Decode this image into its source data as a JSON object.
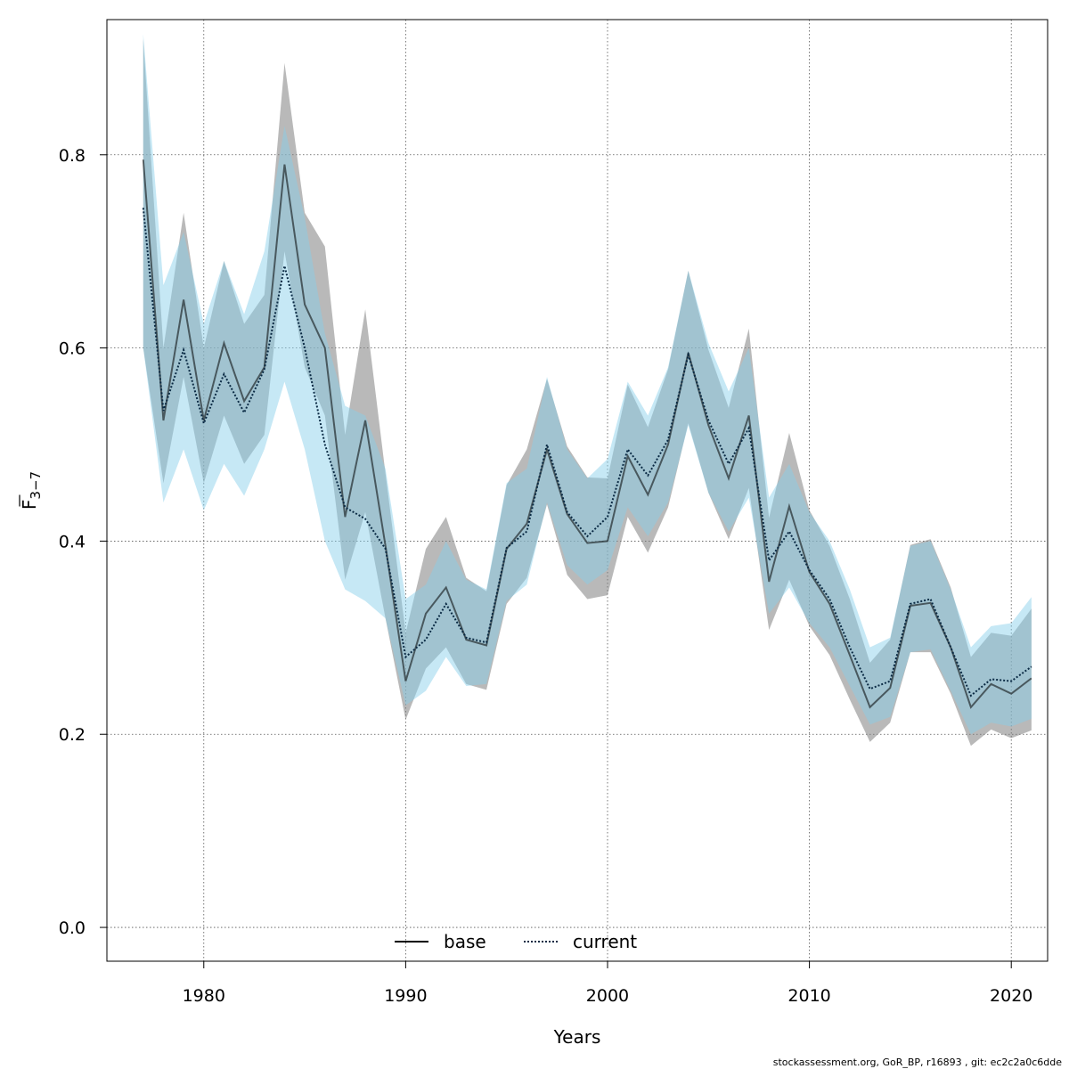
{
  "chart_data": {
    "type": "line",
    "xlabel": "Years",
    "ylabel": {
      "main": "F",
      "sub": "3−7"
    },
    "xlim": [
      1975.2,
      2021.8
    ],
    "ylim": [
      -0.035,
      0.94
    ],
    "x_ticks": [
      1980,
      1990,
      2000,
      2010,
      2020
    ],
    "x_tick_labels": [
      "1980",
      "1990",
      "2000",
      "2010",
      "2020"
    ],
    "y_ticks": [
      0.0,
      0.2,
      0.4,
      0.6,
      0.8
    ],
    "y_tick_labels": [
      "0.0",
      "0.2",
      "0.4",
      "0.6",
      "0.8"
    ],
    "grid": true,
    "legend_position": "bottom-center",
    "x": [
      1977,
      1978,
      1979,
      1980,
      1981,
      1982,
      1983,
      1984,
      1985,
      1986,
      1987,
      1988,
      1989,
      1990,
      1991,
      1992,
      1993,
      1994,
      1995,
      1996,
      1997,
      1998,
      1999,
      2000,
      2001,
      2002,
      2003,
      2004,
      2005,
      2006,
      2007,
      2008,
      2009,
      2010,
      2011,
      2012,
      2013,
      2014,
      2015,
      2016,
      2017,
      2018,
      2019,
      2020,
      2021
    ],
    "series": [
      {
        "name": "base",
        "line_style": "solid",
        "color": "#000000",
        "band_color": "#808080",
        "values": [
          0.795,
          0.525,
          0.65,
          0.525,
          0.605,
          0.545,
          0.58,
          0.79,
          0.645,
          0.6,
          0.425,
          0.525,
          0.395,
          0.255,
          0.325,
          0.352,
          0.298,
          0.292,
          0.392,
          0.418,
          0.495,
          0.428,
          0.398,
          0.4,
          0.488,
          0.448,
          0.5,
          0.595,
          0.52,
          0.465,
          0.53,
          0.358,
          0.436,
          0.368,
          0.335,
          0.282,
          0.228,
          0.248,
          0.333,
          0.336,
          0.29,
          0.228,
          0.252,
          0.242,
          0.258
        ],
        "lower": [
          0.6,
          0.46,
          0.57,
          0.46,
          0.53,
          0.48,
          0.51,
          0.7,
          0.58,
          0.53,
          0.36,
          0.43,
          0.32,
          0.215,
          0.268,
          0.29,
          0.252,
          0.246,
          0.335,
          0.362,
          0.438,
          0.365,
          0.34,
          0.344,
          0.425,
          0.388,
          0.435,
          0.522,
          0.45,
          0.402,
          0.455,
          0.308,
          0.36,
          0.312,
          0.282,
          0.236,
          0.192,
          0.212,
          0.285,
          0.285,
          0.242,
          0.188,
          0.205,
          0.196,
          0.204
        ],
        "upper": [
          0.92,
          0.6,
          0.74,
          0.6,
          0.69,
          0.625,
          0.655,
          0.895,
          0.74,
          0.705,
          0.51,
          0.64,
          0.47,
          0.305,
          0.392,
          0.425,
          0.362,
          0.348,
          0.458,
          0.495,
          0.568,
          0.498,
          0.466,
          0.465,
          0.562,
          0.518,
          0.578,
          0.68,
          0.598,
          0.538,
          0.62,
          0.424,
          0.512,
          0.432,
          0.395,
          0.34,
          0.274,
          0.298,
          0.396,
          0.402,
          0.352,
          0.28,
          0.305,
          0.302,
          0.33
        ]
      },
      {
        "name": "current",
        "line_style": "dotted",
        "color": "#0a2a44",
        "band_color": "#87ceeb",
        "values": [
          0.745,
          0.535,
          0.598,
          0.522,
          0.573,
          0.533,
          0.578,
          0.685,
          0.6,
          0.5,
          0.435,
          0.423,
          0.392,
          0.28,
          0.298,
          0.335,
          0.3,
          0.295,
          0.393,
          0.41,
          0.5,
          0.43,
          0.405,
          0.425,
          0.495,
          0.468,
          0.505,
          0.593,
          0.525,
          0.48,
          0.517,
          0.38,
          0.41,
          0.37,
          0.34,
          0.29,
          0.247,
          0.255,
          0.335,
          0.34,
          0.29,
          0.24,
          0.257,
          0.255,
          0.27
        ],
        "lower": [
          0.6,
          0.44,
          0.495,
          0.432,
          0.48,
          0.447,
          0.495,
          0.565,
          0.495,
          0.4,
          0.35,
          0.338,
          0.32,
          0.23,
          0.245,
          0.28,
          0.25,
          0.252,
          0.338,
          0.355,
          0.44,
          0.375,
          0.355,
          0.37,
          0.435,
          0.405,
          0.44,
          0.52,
          0.45,
          0.41,
          0.445,
          0.325,
          0.352,
          0.315,
          0.29,
          0.25,
          0.21,
          0.218,
          0.285,
          0.288,
          0.245,
          0.2,
          0.212,
          0.208,
          0.216
        ],
        "upper": [
          0.925,
          0.665,
          0.72,
          0.625,
          0.69,
          0.635,
          0.7,
          0.83,
          0.735,
          0.615,
          0.54,
          0.53,
          0.475,
          0.34,
          0.355,
          0.4,
          0.36,
          0.35,
          0.46,
          0.475,
          0.57,
          0.495,
          0.465,
          0.485,
          0.565,
          0.53,
          0.58,
          0.68,
          0.605,
          0.555,
          0.6,
          0.445,
          0.48,
          0.43,
          0.4,
          0.35,
          0.29,
          0.3,
          0.395,
          0.4,
          0.35,
          0.29,
          0.312,
          0.315,
          0.342
        ]
      }
    ]
  },
  "footer": "stockassessment.org, GoR_BP, r16893 , git: ec2c2a0c6dde"
}
